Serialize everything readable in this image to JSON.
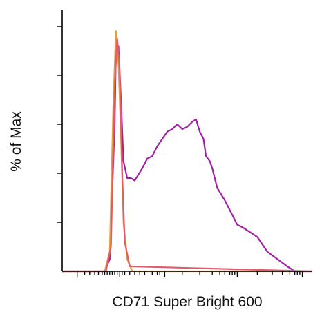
{
  "chart_data": {
    "type": "line",
    "title": "",
    "xlabel": "CD71 Super Bright 600",
    "ylabel": "% of Max",
    "xlim": [
      0,
      1
    ],
    "ylim": [
      0,
      100
    ],
    "x_scale": "biexponential (unlabeled)",
    "grid": false,
    "legend": "none",
    "series": [
      {
        "color": "#a020a8",
        "x": [
          0.0,
          0.17,
          0.19,
          0.21,
          0.215,
          0.225,
          0.235,
          0.245,
          0.26,
          0.275,
          0.29,
          0.32,
          0.34,
          0.36,
          0.38,
          0.4,
          0.42,
          0.44,
          0.46,
          0.48,
          0.5,
          0.52,
          0.535,
          0.55,
          0.565,
          0.575,
          0.59,
          0.6,
          0.62,
          0.65,
          0.68,
          0.7,
          0.72,
          0.75,
          0.78,
          0.82,
          0.86,
          0.9,
          0.93,
          1.0
        ],
        "y": [
          0,
          0,
          5,
          60,
          90,
          92,
          70,
          45,
          38,
          38,
          37,
          42,
          46,
          47,
          51,
          54,
          57,
          58,
          60,
          58,
          59,
          61,
          62,
          57,
          54,
          47,
          45,
          42,
          34,
          29,
          23,
          19,
          18,
          16,
          14,
          8,
          5,
          2,
          0,
          0
        ]
      },
      {
        "color": "#e8a030",
        "x": [
          0.0,
          0.17,
          0.19,
          0.205,
          0.215,
          0.225,
          0.235,
          0.245,
          0.26,
          0.28,
          1.0
        ],
        "y": [
          0,
          0,
          8,
          70,
          98,
          85,
          55,
          20,
          5,
          0,
          0
        ]
      },
      {
        "color": "#e35a6a",
        "x": [
          0.0,
          0.175,
          0.195,
          0.21,
          0.22,
          0.23,
          0.24,
          0.25,
          0.27,
          1.0
        ],
        "y": [
          0,
          0,
          10,
          75,
          95,
          82,
          40,
          12,
          2,
          0
        ]
      }
    ]
  }
}
